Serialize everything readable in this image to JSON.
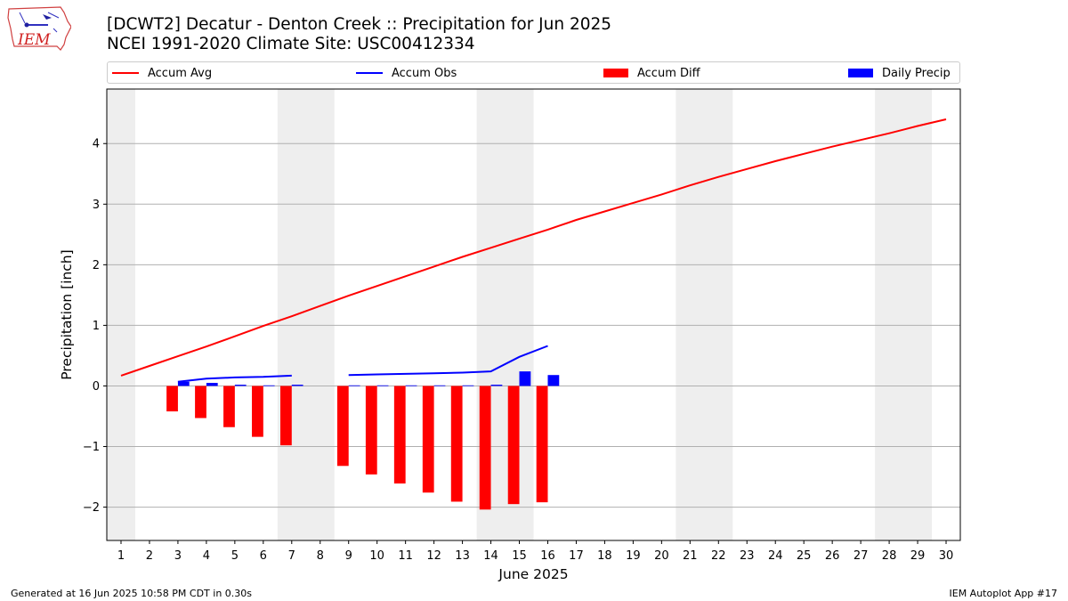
{
  "header": {
    "title_line1": "[DCWT2] Decatur - Denton Creek :: Precipitation for Jun 2025",
    "title_line2": "NCEI 1991-2020 Climate Site: USC00412334",
    "logo_text": "IEM"
  },
  "legend": [
    {
      "label": "Accum Avg",
      "color": "#ff0000",
      "kind": "line"
    },
    {
      "label": "Accum Obs",
      "color": "#0000ff",
      "kind": "line"
    },
    {
      "label": "Accum Diff",
      "color": "#ff0000",
      "kind": "bar"
    },
    {
      "label": "Daily Precip",
      "color": "#0000ff",
      "kind": "bar"
    }
  ],
  "footer": {
    "left": "Generated at 16 Jun 2025 10:58 PM CDT in 0.30s",
    "right": "IEM Autoplot App #17"
  },
  "chart_data": {
    "type": "bar",
    "xlabel": "June 2025",
    "ylabel": "Precipitation [inch]",
    "xlim": [
      0.5,
      30.5
    ],
    "ylim": [
      -2.55,
      4.9
    ],
    "yticks": [
      -2,
      -1,
      0,
      1,
      2,
      3,
      4
    ],
    "ytick_labels": [
      "−2",
      "−1",
      "0",
      "1",
      "2",
      "3",
      "4"
    ],
    "xticks": [
      1,
      2,
      3,
      4,
      5,
      6,
      7,
      8,
      9,
      10,
      11,
      12,
      13,
      14,
      15,
      16,
      17,
      18,
      19,
      20,
      21,
      22,
      23,
      24,
      25,
      26,
      27,
      28,
      29,
      30
    ],
    "grid": "horizontal",
    "weekend_shading": [
      [
        0.5,
        1.5
      ],
      [
        6.5,
        8.5
      ],
      [
        13.5,
        15.5
      ],
      [
        20.5,
        22.5
      ],
      [
        27.5,
        29.5
      ]
    ],
    "shading_color": "#eeeeee",
    "series": [
      {
        "name": "Accum Avg",
        "type": "line",
        "color": "#ff0000",
        "x": [
          1,
          2,
          3,
          4,
          5,
          6,
          7,
          8,
          9,
          10,
          11,
          12,
          13,
          14,
          15,
          16,
          17,
          18,
          19,
          20,
          21,
          22,
          23,
          24,
          25,
          26,
          27,
          28,
          29,
          30
        ],
        "values": [
          0.17,
          0.33,
          0.49,
          0.65,
          0.82,
          0.99,
          1.15,
          1.32,
          1.49,
          1.65,
          1.81,
          1.97,
          2.13,
          2.28,
          2.43,
          2.58,
          2.74,
          2.88,
          3.02,
          3.16,
          3.31,
          3.45,
          3.58,
          3.71,
          3.83,
          3.95,
          4.06,
          4.17,
          4.29,
          4.4
        ]
      },
      {
        "name": "Accum Obs",
        "type": "line",
        "color": "#0000ff",
        "x": [
          3,
          4,
          5,
          6,
          7,
          8,
          9,
          10,
          11,
          12,
          13,
          14,
          15,
          16
        ],
        "values": [
          0.07,
          0.12,
          0.14,
          0.15,
          0.17,
          null,
          0.18,
          0.19,
          0.2,
          0.21,
          0.22,
          0.24,
          0.48,
          0.66
        ]
      },
      {
        "name": "Accum Diff",
        "type": "bar",
        "color": "#ff0000",
        "offset": -0.2,
        "width": 0.4,
        "x": [
          3,
          4,
          5,
          6,
          7,
          9,
          10,
          11,
          12,
          13,
          14,
          15,
          16
        ],
        "values": [
          -0.42,
          -0.53,
          -0.68,
          -0.84,
          -0.98,
          -1.32,
          -1.46,
          -1.61,
          -1.76,
          -1.91,
          -2.04,
          -1.95,
          -1.92
        ]
      },
      {
        "name": "Daily Precip",
        "type": "bar",
        "color": "#0000ff",
        "offset": 0.2,
        "width": 0.4,
        "x": [
          3,
          4,
          5,
          6,
          7,
          9,
          10,
          11,
          12,
          13,
          14,
          15,
          16
        ],
        "values": [
          0.07,
          0.05,
          0.02,
          0.01,
          0.02,
          0.01,
          0.01,
          0.01,
          0.01,
          0.01,
          0.02,
          0.24,
          0.18
        ]
      }
    ]
  }
}
